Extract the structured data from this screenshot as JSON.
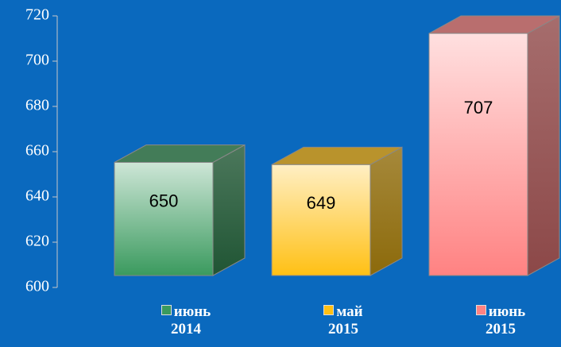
{
  "chart_data": {
    "type": "bar3d",
    "series": [
      {
        "name": "июнь 2014",
        "color": "#3a9a5e",
        "values": [
          650
        ]
      },
      {
        "name": "май 2015",
        "color": "#ffc014",
        "values": [
          649
        ]
      },
      {
        "name": "июнь 2015",
        "color": "#ff8282",
        "values": [
          707
        ]
      }
    ],
    "ylim": [
      600,
      720
    ],
    "yticks": [
      600,
      620,
      640,
      660,
      680,
      700,
      720
    ],
    "grid": false
  }
}
